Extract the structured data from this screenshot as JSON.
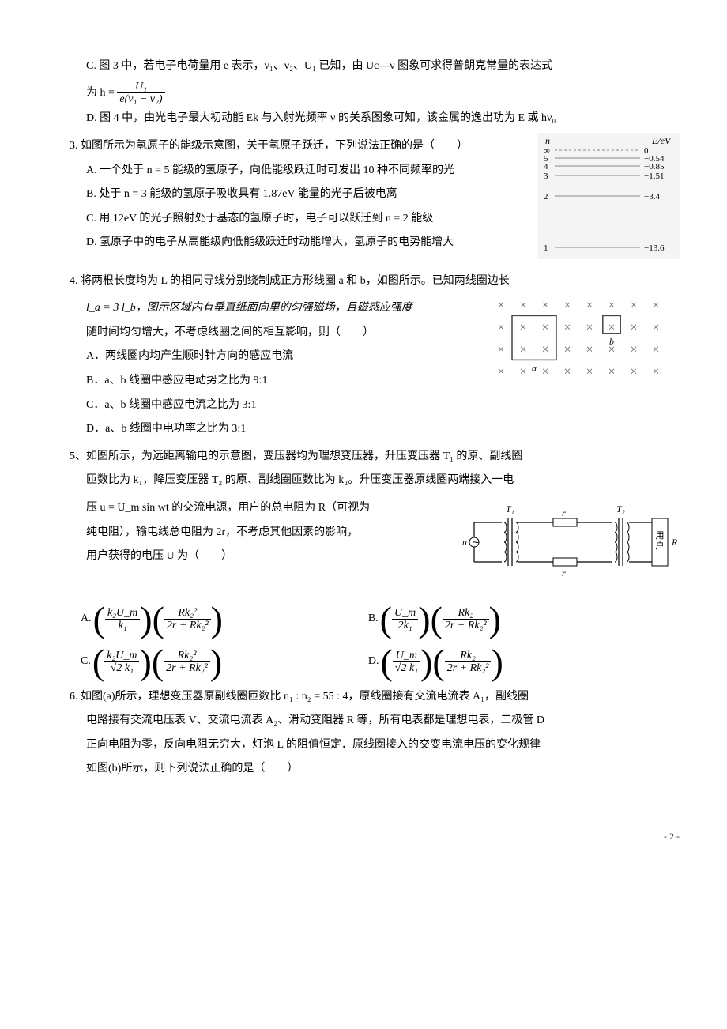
{
  "q2": {
    "C": "C. 图 3 中，若电子电荷量用 e 表示，ν₁、ν₂、U₁ 已知，由 Uc—ν 图象可求得普朗克常量的表达式",
    "C_eq_prefix": "为 h = ",
    "C_eq_num": "U₁",
    "C_eq_den": "e(ν₁ − ν₂)",
    "D": "D. 图 4 中，由光电子最大初动能 Ek 与入射光频率 ν 的关系图象可知，该金属的逸出功为 E 或 hν₀"
  },
  "q3": {
    "stem": "3. 如图所示为氢原子的能级示意图，关于氢原子跃迁，下列说法正确的是（　　）",
    "A": "A. 一个处于 n = 5 能级的氢原子，向低能级跃迁时可发出 10 种不同频率的光",
    "B": "B. 处于 n = 3 能级的氢原子吸收具有 1.87eV 能量的光子后被电离",
    "C": "C. 用 12eV 的光子照射处于基态的氢原子时，电子可以跃迁到 n = 2 能级",
    "D": "D. 氢原子中的电子从高能级向低能级跃迁时动能增大，氢原子的电势能增大",
    "levels": {
      "header_n": "n",
      "header_E": "E/eV",
      "rows": [
        {
          "n": "∞",
          "E": "0",
          "dash": true
        },
        {
          "n": "5",
          "E": "−0.54"
        },
        {
          "n": "4",
          "E": "−0.85"
        },
        {
          "n": "3",
          "E": "−1.51"
        },
        {
          "n": "2",
          "E": "−3.4"
        },
        {
          "n": "1",
          "E": "−13.6"
        }
      ],
      "line_color": "#888",
      "bg_color": "#f4f4f4"
    }
  },
  "q4": {
    "stem1": "4. 将两根长度均为 L 的相同导线分别绕制成正方形线圈 a 和 b，如图所示。已知两线圈边长",
    "stem2_prefix": "l_a = 3 l_b，图示区域内有垂直纸面向里的匀强磁场，且磁感应强度",
    "stem3": "随时间均匀增大，不考虑线圈之间的相互影响，则（　　）",
    "A": "A．两线圈内均产生顺时针方向的感应电流",
    "B": "B．a、b 线圈中感应电动势之比为 9:1",
    "C": "C．a、b 线圈中感应电流之比为 3:1",
    "D": "D．a、b 线圈中电功率之比为 3:1",
    "fig": {
      "x_color": "#666",
      "box_color": "#444",
      "label_a": "a",
      "label_b": "b"
    }
  },
  "q5": {
    "stem1": "5、如图所示，为远距离输电的示意图，变压器均为理想变压器，升压变压器 T₁ 的原、副线圈",
    "stem2": "匝数比为 k₁，降压变压器 T₂ 的原、副线圈匝数比为 k₂。升压变压器原线圈两端接入一电",
    "stem3": "压 u = U_m sin wt 的交流电源，用户的总电阻为 R（可视为",
    "stem4": "纯电阻），输电线总电阻为 2r，不考虑其他因素的影响，",
    "stem5": "用户获得的电压 U 为（　　）",
    "fig": {
      "T1": "T₁",
      "T2": "T₂",
      "r": "r",
      "u": "u",
      "R": "R",
      "box": "用\n户",
      "tilde": "∼"
    },
    "opts": {
      "A": {
        "l": "A.",
        "n1": "k₂U_m",
        "d1": "k₁",
        "n2": "Rk₂²",
        "d2": "2r + Rk₂²"
      },
      "B": {
        "l": "B.",
        "n1": "U_m",
        "d1": "2k₁",
        "n2": "Rk₂",
        "d2": "2r + Rk₂²"
      },
      "C": {
        "l": "C.",
        "n1": "k₂U_m",
        "d1": "√2 k₁",
        "n2": "Rk₂²",
        "d2": "2r + Rk₂²"
      },
      "D": {
        "l": "D.",
        "n1": "U_m",
        "d1": "√2 k₁",
        "n2": "Rk₂",
        "d2": "2r + Rk₂²"
      }
    }
  },
  "q6": {
    "stem1": "6. 如图(a)所示，理想变压器原副线圈匝数比 n₁ : n₂ = 55 : 4，原线圈接有交流电流表 A₁，副线圈",
    "stem2": "电路接有交流电压表 V、交流电流表 A₂、滑动变阻器 R 等，所有电表都是理想电表，二极管 D",
    "stem3": "正向电阻为零，反向电阻无穷大，灯泡 L 的阻值恒定．原线圈接入的交变电流电压的变化规律",
    "stem4": "如图(b)所示，则下列说法正确的是（　　）"
  },
  "pagenum": "- 2 -"
}
